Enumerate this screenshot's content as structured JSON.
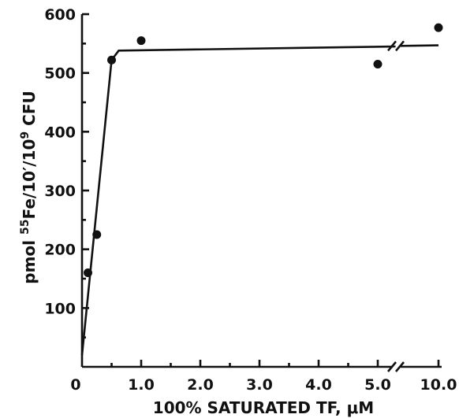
{
  "chart_data": {
    "type": "scatter",
    "xlabel": "100% SATURATED TF, μM",
    "ylabel_parts": {
      "prefix": "pmol ",
      "iso": "55",
      "fe": "Fe/10′/10",
      "exp": "9",
      "suffix": " CFU"
    },
    "xlim": [
      0,
      10
    ],
    "ylim": [
      0,
      600
    ],
    "x_axis_break": {
      "from": 5.3,
      "to": 10
    },
    "x_ticks": [
      {
        "value": 0,
        "label": "0"
      },
      {
        "value": 1,
        "label": "1.0"
      },
      {
        "value": 2,
        "label": "2.0"
      },
      {
        "value": 3,
        "label": "3.0"
      },
      {
        "value": 4,
        "label": "4.0"
      },
      {
        "value": 5,
        "label": "5.0"
      },
      {
        "value": 10,
        "label": "10.0"
      }
    ],
    "y_ticks": [
      {
        "value": 100,
        "label": "100"
      },
      {
        "value": 200,
        "label": "200"
      },
      {
        "value": 300,
        "label": "300"
      },
      {
        "value": 400,
        "label": "400"
      },
      {
        "value": 500,
        "label": "500"
      },
      {
        "value": 600,
        "label": "600"
      }
    ],
    "series": [
      {
        "points": [
          {
            "x": 0.1,
            "y": 160
          },
          {
            "x": 0.25,
            "y": 225
          },
          {
            "x": 0.5,
            "y": 522
          },
          {
            "x": 1.0,
            "y": 555
          },
          {
            "x": 5.0,
            "y": 515
          },
          {
            "x": 10.0,
            "y": 577
          }
        ]
      }
    ],
    "fit_line": {
      "points": [
        [
          0,
          20
        ],
        [
          0.5,
          522
        ],
        [
          0.62,
          538
        ],
        [
          5.3,
          545
        ],
        [
          10.0,
          547
        ]
      ]
    },
    "grid": false,
    "legend": false
  }
}
